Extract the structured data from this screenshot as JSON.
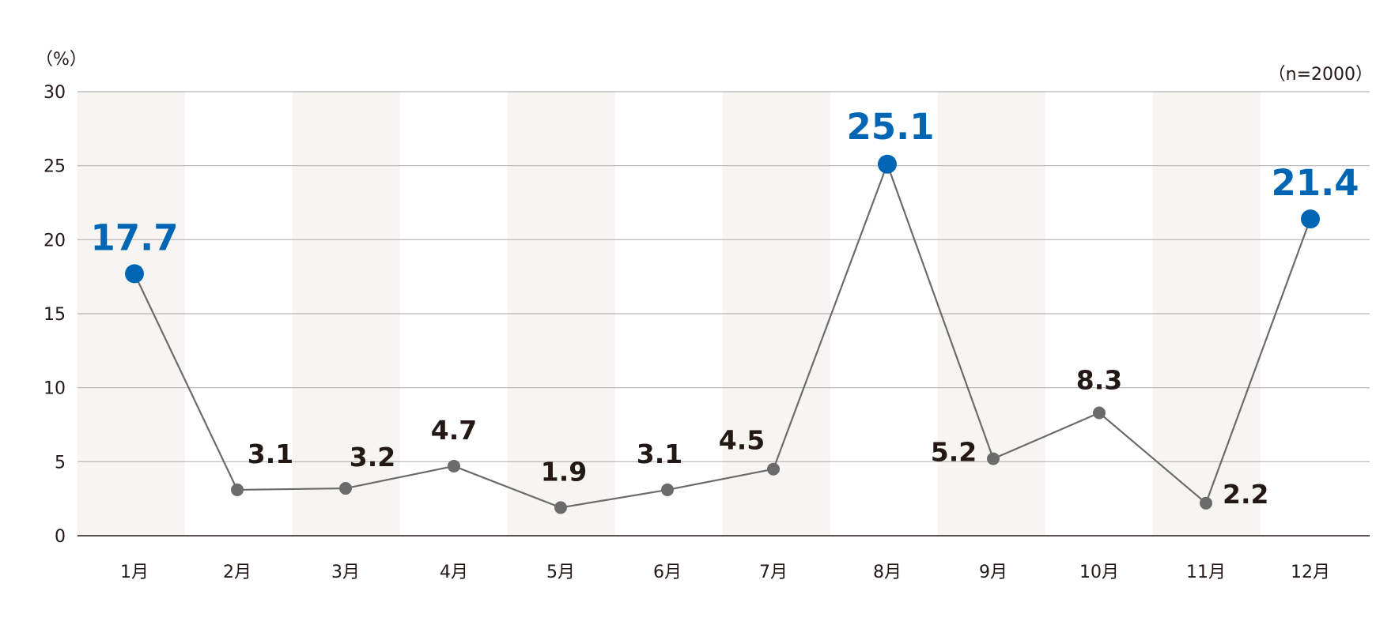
{
  "chart_data": {
    "type": "line",
    "unit_label": "（%）",
    "sample_label": "（n=2000）",
    "categories": [
      "1月",
      "2月",
      "3月",
      "4月",
      "5月",
      "6月",
      "7月",
      "8月",
      "9月",
      "10月",
      "11月",
      "12月"
    ],
    "values": [
      17.7,
      3.1,
      3.2,
      4.7,
      1.9,
      3.1,
      4.5,
      25.1,
      5.2,
      8.3,
      2.2,
      21.4
    ],
    "data_labels": [
      "17.7",
      "3.1",
      "3.2",
      "4.7",
      "1.9",
      "3.1",
      "4.5",
      "25.1",
      "5.2",
      "8.3",
      "2.2",
      "21.4"
    ],
    "highlighted": [
      true,
      false,
      false,
      false,
      false,
      false,
      false,
      true,
      false,
      false,
      false,
      true
    ],
    "ylim": [
      0,
      30
    ],
    "yticks": [
      "0",
      "5",
      "10",
      "15",
      "20",
      "25",
      "30"
    ],
    "grid": true,
    "colors": {
      "line": "#6b6b6b",
      "point": "#6b6b6b",
      "highlight": "#0066b3",
      "band": "#f6f5f1",
      "grid": "#b5b5b5",
      "axis": "#231815"
    }
  }
}
